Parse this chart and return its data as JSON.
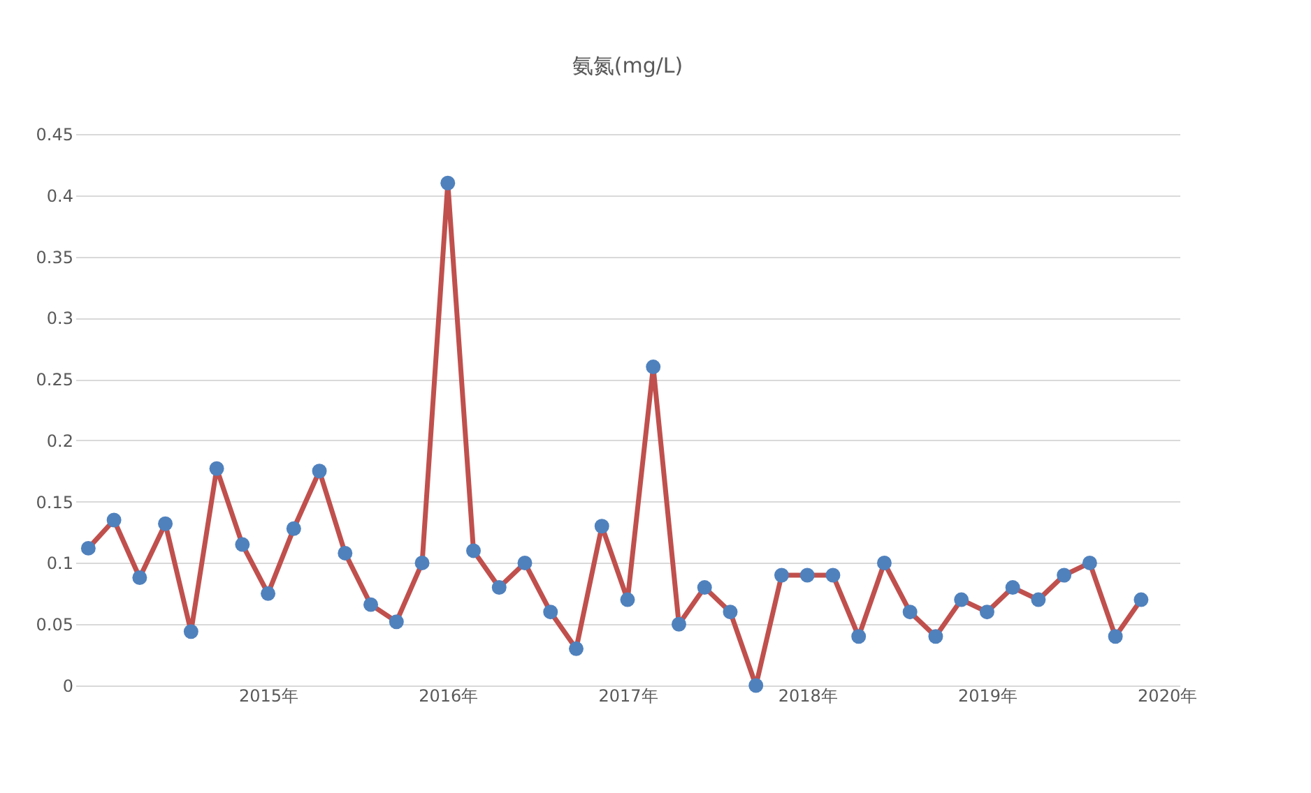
{
  "chart_data": {
    "type": "line",
    "title": "氨氮(mg/L)",
    "categories": [
      null,
      null,
      null,
      null,
      null,
      null,
      null,
      "2015年",
      null,
      null,
      null,
      null,
      null,
      null,
      "2016年",
      null,
      null,
      null,
      null,
      null,
      null,
      "2017年",
      null,
      null,
      null,
      null,
      null,
      null,
      "2018年",
      null,
      null,
      null,
      null,
      null,
      null,
      "2019年",
      null,
      null,
      null,
      null,
      null,
      null,
      "2020年"
    ],
    "series": [
      {
        "color": "#c0504d",
        "values": [
          0.112,
          0.135,
          0.088,
          0.132,
          0.044,
          0.177,
          0.115,
          0.075,
          0.128,
          0.175,
          0.108,
          0.066,
          0.052,
          0.1,
          0.41,
          0.11,
          0.08,
          0.1,
          0.06,
          0.03,
          0.13,
          0.07,
          0.26,
          0.05,
          0.08,
          0.06,
          0.0,
          0.09,
          0.09,
          0.09,
          0.04,
          0.1,
          0.06,
          0.04,
          0.07,
          0.06,
          0.08,
          0.07,
          0.09,
          0.1,
          0.04,
          0.07,
          null
        ]
      }
    ],
    "ylim": [
      0,
      0.45
    ],
    "yticks": [
      0,
      0.05,
      0.1,
      0.15,
      0.2,
      0.25,
      0.3,
      0.35,
      0.4,
      0.45
    ],
    "grid": "y",
    "marker": "circle",
    "line_style": "solid"
  }
}
